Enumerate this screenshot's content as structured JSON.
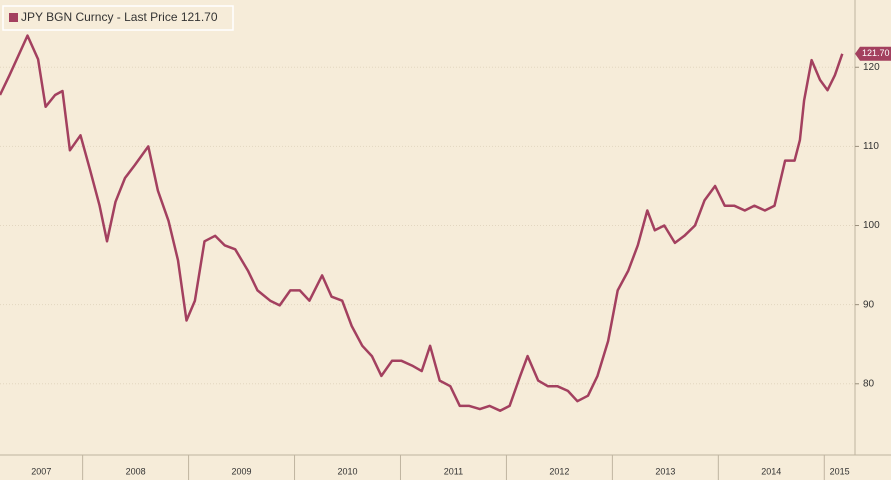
{
  "chart_data": {
    "type": "line",
    "x": [
      2007.22,
      2007.31,
      2007.48,
      2007.58,
      2007.65,
      2007.74,
      2007.81,
      2007.88,
      2007.98,
      2008.07,
      2008.16,
      2008.23,
      2008.31,
      2008.4,
      2008.49,
      2008.62,
      2008.71,
      2008.81,
      2008.9,
      2008.98,
      2009.06,
      2009.15,
      2009.25,
      2009.34,
      2009.44,
      2009.56,
      2009.65,
      2009.77,
      2009.86,
      2009.96,
      2010.05,
      2010.14,
      2010.26,
      2010.35,
      2010.45,
      2010.54,
      2010.64,
      2010.73,
      2010.82,
      2010.92,
      2011.01,
      2011.11,
      2011.2,
      2011.28,
      2011.37,
      2011.47,
      2011.56,
      2011.65,
      2011.75,
      2011.84,
      2011.94,
      2012.03,
      2012.13,
      2012.2,
      2012.3,
      2012.39,
      2012.48,
      2012.58,
      2012.67,
      2012.77,
      2012.86,
      2012.96,
      2013.05,
      2013.15,
      2013.24,
      2013.33,
      2013.4,
      2013.49,
      2013.59,
      2013.68,
      2013.78,
      2013.87,
      2013.97,
      2014.06,
      2014.15,
      2014.25,
      2014.34,
      2014.44,
      2014.53,
      2014.63,
      2014.72,
      2014.77,
      2014.81,
      2014.88,
      2014.96,
      2015.03,
      2015.1,
      2015.17
    ],
    "series": [
      {
        "name": "JPY BGN Curncy - Last Price 121.70",
        "color": "#a3405f",
        "values": [
          116.5,
          119,
          124,
          121,
          115,
          116.5,
          117,
          109.5,
          111.4,
          107,
          102.5,
          98,
          103,
          106,
          107.6,
          110,
          104.4,
          100.6,
          95.6,
          88,
          90.5,
          98,
          98.7,
          97.5,
          97,
          94.3,
          91.8,
          90.5,
          89.9,
          91.8,
          91.8,
          90.5,
          93.7,
          91,
          90.5,
          87.3,
          84.8,
          83.5,
          81,
          82.9,
          82.9,
          82.3,
          81.6,
          84.8,
          80.4,
          79.7,
          77.2,
          77.2,
          76.8,
          77.2,
          76.6,
          77.2,
          81,
          83.5,
          80.4,
          79.7,
          79.7,
          79.1,
          77.8,
          78.5,
          81,
          85.4,
          91.8,
          94.3,
          97.5,
          101.9,
          99.4,
          100,
          97.8,
          98.7,
          100,
          103.2,
          105,
          102.5,
          102.5,
          101.9,
          102.5,
          101.9,
          102.5,
          108.2,
          108.2,
          110.8,
          115.8,
          120.9,
          118.4,
          117.1,
          119,
          121.7
        ]
      }
    ],
    "last_value": {
      "value": 121.7,
      "label": "121.70"
    },
    "xlim": [
      2007.22,
      2015.29
    ],
    "xticks": [
      {
        "value": 2007,
        "label": "2007"
      },
      {
        "value": 2008,
        "label": "2008"
      },
      {
        "value": 2009,
        "label": "2009"
      },
      {
        "value": 2010,
        "label": "2010"
      },
      {
        "value": 2011,
        "label": "2011"
      },
      {
        "value": 2012,
        "label": "2012"
      },
      {
        "value": 2013,
        "label": "2013"
      },
      {
        "value": 2014,
        "label": "2014"
      },
      {
        "value": 2015,
        "label": "2015"
      }
    ],
    "ylim": [
      71,
      128.5
    ],
    "yticks": [
      80,
      90,
      100,
      110,
      120
    ],
    "grid": true
  }
}
